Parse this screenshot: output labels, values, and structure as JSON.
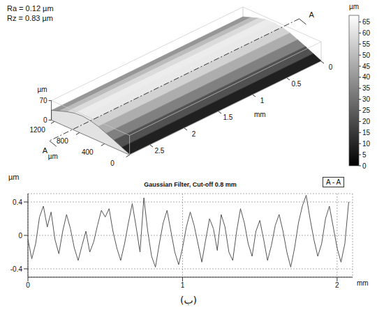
{
  "chart_data": [
    {
      "type": "surface",
      "annotations": [
        "Ra = 0.12 µm",
        "Rz = 0.83 µm"
      ],
      "section_label": "A",
      "xlabel": "mm",
      "xlim": [
        0,
        2.8
      ],
      "xticks": [
        0,
        0.5,
        1,
        1.5,
        2,
        2.5
      ],
      "ylabel": "µm",
      "ylim": [
        0,
        1250
      ],
      "yticks": [
        0,
        400,
        800,
        1200
      ],
      "zlabel": "µm",
      "zlim": [
        0,
        70
      ],
      "zticks": [
        0,
        70
      ],
      "cross_section": {
        "y": [
          0,
          125,
          250,
          375,
          500,
          625,
          750,
          875,
          1000,
          1125,
          1250
        ],
        "z": [
          2,
          15,
          28,
          40,
          52,
          60,
          64,
          62,
          55,
          45,
          35
        ]
      },
      "colorbar": {
        "label": "µm",
        "range": [
          0,
          68
        ],
        "ticks": [
          0,
          5,
          10,
          15,
          20,
          25,
          30,
          35,
          40,
          45,
          50,
          55,
          60,
          65
        ]
      }
    },
    {
      "type": "line",
      "title": "Gaussian Filter, Cut-off 0.8 mm",
      "section_label": "A - A",
      "ylabel": "µm",
      "xlabel": "mm",
      "x": [
        0,
        0.025,
        0.05,
        0.075,
        0.1,
        0.125,
        0.15,
        0.175,
        0.2,
        0.225,
        0.25,
        0.275,
        0.3,
        0.325,
        0.35,
        0.375,
        0.4,
        0.425,
        0.45,
        0.475,
        0.5,
        0.525,
        0.55,
        0.575,
        0.6,
        0.625,
        0.65,
        0.675,
        0.7,
        0.725,
        0.75,
        0.775,
        0.8,
        0.825,
        0.85,
        0.875,
        0.9,
        0.925,
        0.95,
        0.975,
        1,
        1.025,
        1.05,
        1.075,
        1.1,
        1.125,
        1.15,
        1.175,
        1.2,
        1.225,
        1.25,
        1.275,
        1.3,
        1.325,
        1.35,
        1.375,
        1.4,
        1.425,
        1.45,
        1.475,
        1.5,
        1.525,
        1.55,
        1.575,
        1.6,
        1.625,
        1.65,
        1.675,
        1.7,
        1.725,
        1.75,
        1.775,
        1.8,
        1.825,
        1.85,
        1.875,
        1.9,
        1.925,
        1.95,
        1.975,
        2,
        2.025,
        2.05,
        2.075
      ],
      "values": [
        -0.05,
        -0.28,
        -0.1,
        0.22,
        0.35,
        0.1,
        0.28,
        -0.05,
        -0.22,
        0.05,
        0.25,
        0.08,
        -0.15,
        -0.3,
        -0.12,
        0.05,
        -0.2,
        -0.08,
        0.12,
        0.3,
        0.22,
        0.32,
        0.05,
        -0.15,
        -0.3,
        -0.1,
        0.15,
        0.38,
        0.1,
        -0.2,
        0.45,
        0.05,
        -0.25,
        -0.38,
        -0.1,
        0.15,
        0.3,
        0.05,
        -0.2,
        -0.35,
        -0.15,
        0.1,
        0.28,
        0.12,
        -0.1,
        -0.32,
        -0.05,
        0.2,
        0.08,
        -0.18,
        0.25,
        0.1,
        -0.2,
        -0.3,
        0.05,
        0.32,
        0.15,
        -0.1,
        -0.25,
        0.05,
        0.18,
        -0.05,
        -0.3,
        -0.12,
        0.12,
        0.25,
        0.05,
        -0.2,
        -0.38,
        -0.15,
        0.15,
        0.35,
        0.48,
        0.2,
        -0.05,
        -0.25,
        -0.1,
        0.2,
        0.35,
        0.1,
        -0.15,
        -0.32,
        -0.1,
        0.4
      ],
      "xlim": [
        0,
        2.1
      ],
      "ylim": [
        -0.5,
        0.5
      ],
      "xticks": [
        0,
        1,
        2
      ],
      "yticks": [
        -0.4,
        0,
        0.4
      ],
      "grid": true,
      "color": "#555555"
    }
  ],
  "caption": "(ب)"
}
